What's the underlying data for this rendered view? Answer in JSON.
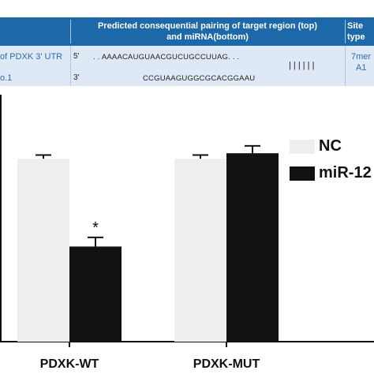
{
  "table": {
    "header": {
      "col_pairing": "Predicted consequential pairing of target region (top)",
      "col_pairing_2": "and miRNA(bottom)",
      "col_site": "Site",
      "col_site_2": "type"
    },
    "row": {
      "gene_label": "of PDXK 3' UTR",
      "gene_label_2": "o.1",
      "prime5": "5'",
      "prime3": "3'",
      "target_seq": ". .   AAAACAUGUAACGUCUGCCUUAG. . .",
      "mirna_seq": "CCGUAAGUGGCGCACGGAAU",
      "pairing_bars": "| | | | | |",
      "site_type": "7mer",
      "site_type_2": "A1"
    }
  },
  "colors": {
    "header_bg": "#1c68a9",
    "row_bg": "#dfe9f5",
    "nc": "#eeeeee",
    "mir": "#111111"
  },
  "chart_data": {
    "type": "bar",
    "categories": [
      "PDXK-WT",
      "PDXK-MUT"
    ],
    "series": [
      {
        "name": "NC",
        "values": [
          1.0,
          1.0
        ],
        "errors": [
          0.02,
          0.02
        ]
      },
      {
        "name": "miR-12",
        "values": [
          0.52,
          1.03
        ],
        "errors": [
          0.05,
          0.04
        ]
      }
    ],
    "annotations": [
      {
        "text": "*",
        "category": "PDXK-WT",
        "series": "miR-12"
      }
    ],
    "ylim": [
      0,
      1.35
    ],
    "legend": "top-right",
    "legend_labels": [
      "NC",
      "miR-12"
    ]
  }
}
